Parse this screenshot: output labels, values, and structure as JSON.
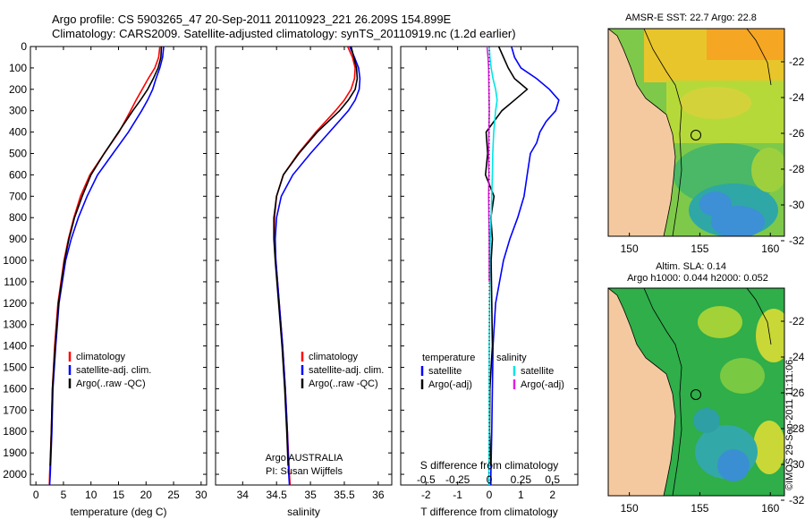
{
  "header": {
    "title_line1": "Argo profile: CS 5903265_47 20-Sep-2011 20110923_221 26.209S 154.899E",
    "title_line2": "Climatology: CARS2009. Satellite-adjusted climatology: synTS_20110919.nc (1.2d earlier)"
  },
  "colors": {
    "climatology": "#ff0000",
    "satellite": "#0000ff",
    "argo": "#000000",
    "satellite_salinity": "#00e5e5",
    "argo_salinity": "#e020e0",
    "land": "#f5c9a0"
  },
  "annotations": {
    "float_operator": "Argo AUSTRALIA",
    "pi": "PI: Susan Wijffels",
    "watermark": "©IMOS 29-Sep-2011 11:11:06"
  },
  "maps": {
    "sst_title": "AMSR-E SST: 22.7 Argo: 22.8",
    "sla_title_1": "Altim. SLA: 0.14",
    "sla_title_2": "Argo h1000: 0.044 h2000: 0.052",
    "x_ticks": [
      "150",
      "155",
      "160"
    ],
    "y_ticks": [
      "-22",
      "-24",
      "-26",
      "-28",
      "-30",
      "-32"
    ]
  },
  "chart_data": [
    {
      "type": "line",
      "name": "temperature",
      "xlabel": "temperature (deg C)",
      "ylabel": "",
      "xlim": [
        -1,
        31
      ],
      "ylim": [
        2050,
        0
      ],
      "x_ticks": [
        0,
        5,
        10,
        15,
        20,
        25,
        30
      ],
      "y_ticks": [
        0,
        100,
        200,
        300,
        400,
        500,
        600,
        700,
        800,
        900,
        1000,
        1100,
        1200,
        1300,
        1400,
        1500,
        1600,
        1700,
        1800,
        1900,
        2000
      ],
      "legend": [
        "climatology",
        "satellite-adj. clim.",
        "Argo(..raw -QC)"
      ],
      "legend_position": "center-right",
      "series": [
        {
          "name": "climatology",
          "color": "#ff0000",
          "depth": [
            0,
            50,
            100,
            150,
            200,
            250,
            300,
            400,
            500,
            600,
            700,
            800,
            900,
            1000,
            1200,
            1400,
            1600,
            1800,
            2000,
            2050
          ],
          "values": [
            22.5,
            22.3,
            21.6,
            20.4,
            19.3,
            18.2,
            17.2,
            15.1,
            12.4,
            9.8,
            8.1,
            6.9,
            5.9,
            5.1,
            4.0,
            3.4,
            3.0,
            2.8,
            2.5,
            2.45
          ]
        },
        {
          "name": "satellite-adj. clim.",
          "color": "#0000ff",
          "depth": [
            0,
            50,
            100,
            150,
            200,
            250,
            300,
            400,
            500,
            600,
            700,
            800,
            900,
            1000,
            1200,
            1400,
            1600,
            1800,
            2000,
            2050
          ],
          "values": [
            23.2,
            23.0,
            22.5,
            21.8,
            21.2,
            20.3,
            19.2,
            16.8,
            14.0,
            11.2,
            9.3,
            7.7,
            6.4,
            5.4,
            4.2,
            3.6,
            3.1,
            2.9,
            2.6,
            2.5
          ]
        },
        {
          "name": "Argo(..raw -QC)",
          "color": "#000000",
          "depth": [
            0,
            50,
            100,
            150,
            200,
            250,
            300,
            400,
            500,
            600,
            700,
            800,
            900,
            1000,
            1200,
            1400,
            1600,
            1800,
            1960
          ],
          "values": [
            22.8,
            22.7,
            22.2,
            21.3,
            20.3,
            19.0,
            17.6,
            15.0,
            12.4,
            10.0,
            8.4,
            7.0,
            6.0,
            5.2,
            4.1,
            3.5,
            3.0,
            2.8,
            2.6
          ]
        }
      ]
    },
    {
      "type": "line",
      "name": "salinity",
      "xlabel": "salinity",
      "ylabel": "",
      "xlim": [
        33.6,
        36.2
      ],
      "ylim": [
        2050,
        0
      ],
      "x_ticks": [
        34,
        34.5,
        35,
        35.5,
        36
      ],
      "legend": [
        "climatology",
        "satellite-adj. clim.",
        "Argo(..raw -QC)"
      ],
      "legend_position": "center-right",
      "series": [
        {
          "name": "climatology",
          "color": "#ff0000",
          "depth": [
            0,
            50,
            100,
            150,
            200,
            250,
            300,
            400,
            500,
            600,
            700,
            800,
            900,
            1000,
            1200,
            1400,
            1600,
            1800,
            2000,
            2050
          ],
          "values": [
            35.55,
            35.62,
            35.66,
            35.65,
            35.6,
            35.5,
            35.37,
            35.08,
            34.82,
            34.6,
            34.5,
            34.47,
            34.47,
            34.49,
            34.54,
            34.59,
            34.63,
            34.66,
            34.69,
            34.7
          ]
        },
        {
          "name": "satellite-adj. clim.",
          "color": "#0000ff",
          "depth": [
            0,
            50,
            100,
            150,
            200,
            250,
            300,
            400,
            500,
            600,
            700,
            800,
            900,
            1000,
            1200,
            1400,
            1600,
            1800,
            2000,
            2050
          ],
          "values": [
            35.58,
            35.65,
            35.71,
            35.73,
            35.72,
            35.66,
            35.56,
            35.28,
            35.0,
            34.74,
            34.57,
            34.5,
            34.48,
            34.49,
            34.54,
            34.59,
            34.63,
            34.66,
            34.68,
            34.69
          ]
        },
        {
          "name": "Argo(..raw -QC)",
          "color": "#000000",
          "depth": [
            0,
            50,
            100,
            150,
            200,
            250,
            300,
            400,
            500,
            600,
            700,
            800,
            900,
            1000,
            1200,
            1400,
            1600,
            1800,
            1960
          ],
          "values": [
            35.6,
            35.64,
            35.68,
            35.69,
            35.66,
            35.56,
            35.43,
            35.1,
            34.83,
            34.6,
            34.5,
            34.46,
            34.46,
            34.48,
            34.53,
            34.58,
            34.62,
            34.65,
            34.67
          ]
        }
      ]
    },
    {
      "type": "line",
      "name": "difference",
      "xlabel": "T difference from climatology",
      "x2label": "S difference from climatology",
      "ylabel": "",
      "xlim": [
        -2.8,
        2.8
      ],
      "ylim": [
        2050,
        0
      ],
      "x_ticks": [
        -2,
        -1,
        0,
        1,
        2
      ],
      "x2_ticks": [
        "-0.5",
        "-0.25",
        "0",
        "0.25",
        "0.5"
      ],
      "legend_temperature_header": "temperature",
      "legend_salinity_header": "salinity",
      "legend": [
        "satellite",
        "Argo(-adj)",
        "satellite",
        "Argo(-adj)"
      ],
      "legend_position": "center",
      "series": [
        {
          "name": "T satellite",
          "color": "#0000ff",
          "depth": [
            0,
            50,
            100,
            150,
            200,
            250,
            300,
            350,
            400,
            450,
            500,
            600,
            700,
            800,
            900,
            1000,
            1200,
            1400,
            1600,
            1800,
            2000,
            2050
          ],
          "values": [
            0.7,
            0.8,
            1.0,
            1.5,
            1.9,
            2.2,
            2.1,
            1.8,
            1.6,
            1.5,
            1.3,
            1.2,
            1.1,
            0.9,
            0.65,
            0.45,
            0.2,
            0.12,
            0.1,
            0.08,
            0.05,
            0.05
          ]
        },
        {
          "name": "T Argo(-adj)",
          "color": "#000000",
          "depth": [
            0,
            50,
            100,
            150,
            200,
            250,
            300,
            400,
            500,
            600,
            700,
            800,
            900,
            1000,
            1200,
            1400,
            1600,
            1800,
            1960
          ],
          "values": [
            0.3,
            0.45,
            0.6,
            0.8,
            1.2,
            0.8,
            0.4,
            -0.1,
            -0.05,
            -0.12,
            0.15,
            0.05,
            0.1,
            0.06,
            0.08,
            0.1,
            0.02,
            0.01,
            0.05
          ]
        },
        {
          "name": "S satellite",
          "color": "#00e5e5",
          "depth": [
            0,
            50,
            100,
            150,
            200,
            250,
            300,
            400,
            500,
            600,
            700,
            800,
            900,
            1000,
            1200,
            1400,
            1600,
            1800,
            2000,
            2050
          ],
          "values": [
            0.0,
            0.02,
            0.06,
            0.12,
            0.2,
            0.25,
            0.2,
            0.14,
            0.11,
            0.1,
            0.08,
            0.06,
            0.03,
            0.02,
            0.01,
            0.0,
            0.0,
            0.0,
            -0.01,
            -0.01
          ]
        },
        {
          "name": "S Argo(-adj)",
          "color": "#e020e0",
          "depth": [
            0,
            50,
            100,
            200,
            300,
            400,
            500,
            600,
            700,
            800,
            900,
            1000,
            1100
          ],
          "values": [
            -0.07,
            -0.04,
            -0.02,
            -0.01,
            0.0,
            -0.01,
            -0.02,
            -0.01,
            -0.02,
            -0.01,
            0.0,
            0.0,
            0.0
          ]
        }
      ]
    }
  ]
}
